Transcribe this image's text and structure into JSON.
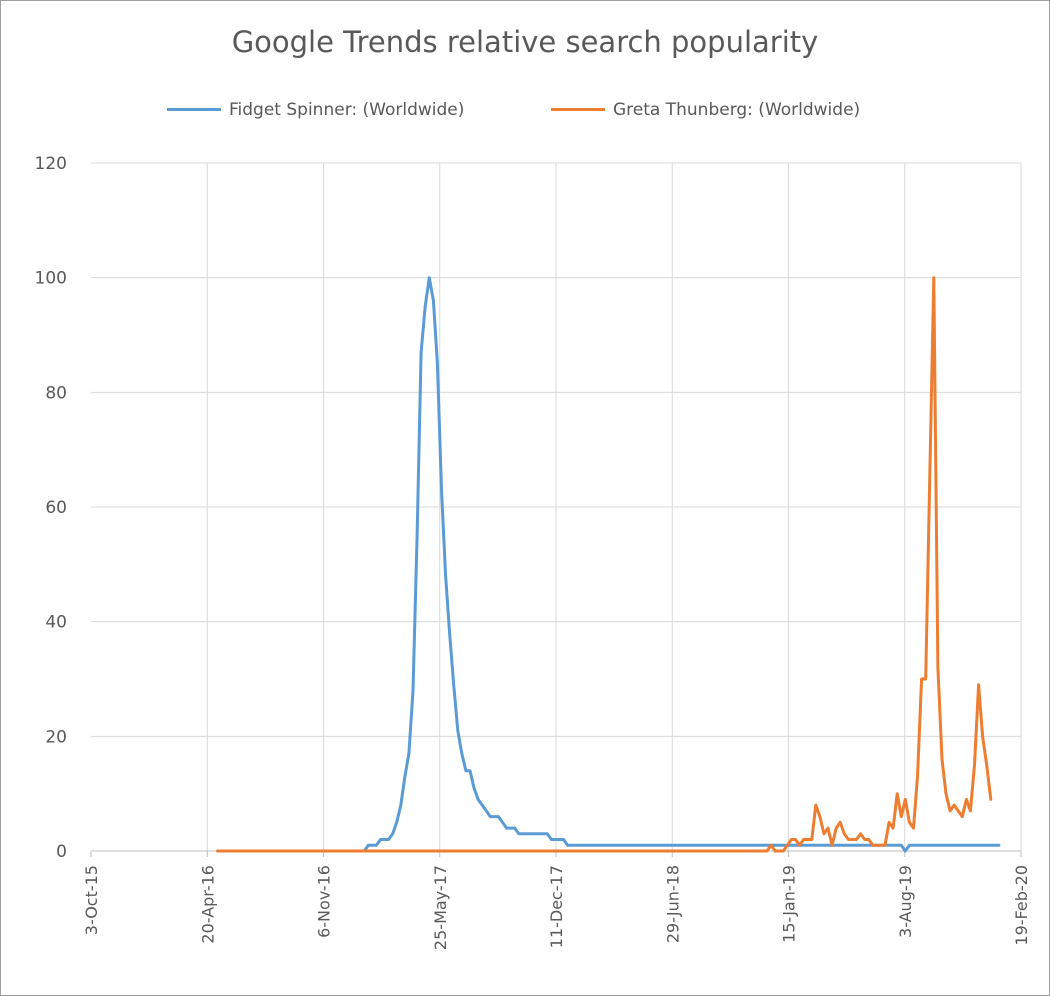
{
  "chart_data": {
    "type": "line",
    "title": "Google Trends relative search popularity",
    "xlabel": "",
    "ylabel": "",
    "x_axis_type": "date",
    "x_ticks": [
      "3-Oct-15",
      "20-Apr-16",
      "6-Nov-16",
      "25-May-17",
      "11-Dec-17",
      "29-Jun-18",
      "15-Jan-19",
      "3-Aug-19",
      "19-Feb-20"
    ],
    "x_range": [
      "2015-10-03",
      "2020-02-19"
    ],
    "ylim": [
      0,
      120
    ],
    "y_ticks": [
      0,
      20,
      40,
      60,
      80,
      100,
      120
    ],
    "grid": true,
    "legend_position": "top",
    "series": [
      {
        "name": "Fidget Spinner: (Worldwide)",
        "color": "#5b9bd5",
        "points": [
          [
            "2016-05-08",
            0
          ],
          [
            "2017-01-15",
            0
          ],
          [
            "2017-01-22",
            1
          ],
          [
            "2017-02-05",
            1
          ],
          [
            "2017-02-12",
            2
          ],
          [
            "2017-02-26",
            2
          ],
          [
            "2017-03-05",
            3
          ],
          [
            "2017-03-12",
            5
          ],
          [
            "2017-03-19",
            8
          ],
          [
            "2017-03-26",
            13
          ],
          [
            "2017-04-02",
            17
          ],
          [
            "2017-04-09",
            28
          ],
          [
            "2017-04-16",
            55
          ],
          [
            "2017-04-23",
            87
          ],
          [
            "2017-04-30",
            95
          ],
          [
            "2017-05-07",
            100
          ],
          [
            "2017-05-14",
            96
          ],
          [
            "2017-05-21",
            85
          ],
          [
            "2017-05-28",
            63
          ],
          [
            "2017-06-04",
            48
          ],
          [
            "2017-06-11",
            38
          ],
          [
            "2017-06-18",
            29
          ],
          [
            "2017-06-25",
            21
          ],
          [
            "2017-07-02",
            17
          ],
          [
            "2017-07-09",
            14
          ],
          [
            "2017-07-16",
            14
          ],
          [
            "2017-07-23",
            11
          ],
          [
            "2017-07-30",
            9
          ],
          [
            "2017-08-06",
            8
          ],
          [
            "2017-08-13",
            7
          ],
          [
            "2017-08-20",
            6
          ],
          [
            "2017-09-03",
            6
          ],
          [
            "2017-09-10",
            5
          ],
          [
            "2017-09-17",
            4
          ],
          [
            "2017-10-01",
            4
          ],
          [
            "2017-10-08",
            3
          ],
          [
            "2017-11-26",
            3
          ],
          [
            "2017-12-03",
            2
          ],
          [
            "2017-12-24",
            2
          ],
          [
            "2017-12-31",
            1
          ],
          [
            "2019-07-28",
            1
          ],
          [
            "2019-08-04",
            0
          ],
          [
            "2019-08-11",
            1
          ],
          [
            "2020-01-12",
            1
          ]
        ]
      },
      {
        "name": "Greta Thunberg: (Worldwide)",
        "color": "#ed7d31",
        "points": [
          [
            "2016-05-08",
            0
          ],
          [
            "2018-12-09",
            0
          ],
          [
            "2018-12-16",
            1
          ],
          [
            "2018-12-23",
            0
          ],
          [
            "2019-01-06",
            0
          ],
          [
            "2019-01-13",
            1
          ],
          [
            "2019-01-20",
            2
          ],
          [
            "2019-01-27",
            2
          ],
          [
            "2019-02-03",
            1
          ],
          [
            "2019-02-10",
            2
          ],
          [
            "2019-02-24",
            2
          ],
          [
            "2019-03-03",
            8
          ],
          [
            "2019-03-10",
            6
          ],
          [
            "2019-03-17",
            3
          ],
          [
            "2019-03-24",
            4
          ],
          [
            "2019-03-31",
            1
          ],
          [
            "2019-04-07",
            4
          ],
          [
            "2019-04-14",
            5
          ],
          [
            "2019-04-21",
            3
          ],
          [
            "2019-04-28",
            2
          ],
          [
            "2019-05-05",
            2
          ],
          [
            "2019-05-12",
            2
          ],
          [
            "2019-05-19",
            3
          ],
          [
            "2019-05-26",
            2
          ],
          [
            "2019-06-02",
            2
          ],
          [
            "2019-06-09",
            1
          ],
          [
            "2019-06-16",
            1
          ],
          [
            "2019-06-30",
            1
          ],
          [
            "2019-07-07",
            5
          ],
          [
            "2019-07-14",
            4
          ],
          [
            "2019-07-21",
            10
          ],
          [
            "2019-07-28",
            6
          ],
          [
            "2019-08-04",
            9
          ],
          [
            "2019-08-11",
            5
          ],
          [
            "2019-08-18",
            4
          ],
          [
            "2019-08-25",
            13
          ],
          [
            "2019-09-01",
            30
          ],
          [
            "2019-09-08",
            30
          ],
          [
            "2019-09-22",
            100
          ],
          [
            "2019-09-29",
            32
          ],
          [
            "2019-10-06",
            16
          ],
          [
            "2019-10-13",
            10
          ],
          [
            "2019-10-20",
            7
          ],
          [
            "2019-10-27",
            8
          ],
          [
            "2019-11-03",
            7
          ],
          [
            "2019-11-10",
            6
          ],
          [
            "2019-11-17",
            9
          ],
          [
            "2019-11-24",
            7
          ],
          [
            "2019-12-01",
            15
          ],
          [
            "2019-12-08",
            29
          ],
          [
            "2019-12-15",
            20
          ],
          [
            "2019-12-22",
            15
          ],
          [
            "2019-12-29",
            9
          ]
        ]
      }
    ]
  }
}
